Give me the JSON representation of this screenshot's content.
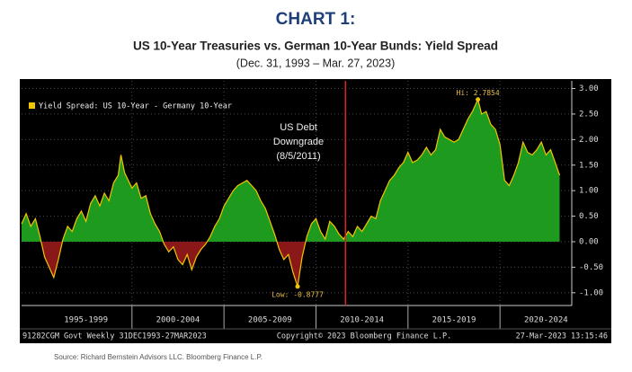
{
  "header": {
    "title": "CHART 1:",
    "subtitle": "US 10-Year Treasuries vs. German 10-Year Bunds: Yield Spread",
    "date_range": "(Dec. 31, 1993 – Mar. 27, 2023)"
  },
  "chart_data": {
    "type": "area",
    "x": [
      1994.0,
      1994.25,
      1994.5,
      1994.75,
      1995.0,
      1995.25,
      1995.5,
      1995.75,
      1996.0,
      1996.25,
      1996.5,
      1996.75,
      1997.0,
      1997.25,
      1997.5,
      1997.75,
      1998.0,
      1998.25,
      1998.5,
      1998.75,
      1999.0,
      1999.25,
      1999.4,
      1999.6,
      1999.8,
      2000.0,
      2000.25,
      2000.5,
      2000.75,
      2001.0,
      2001.25,
      2001.5,
      2001.75,
      2002.0,
      2002.25,
      2002.5,
      2002.75,
      2003.0,
      2003.25,
      2003.5,
      2003.75,
      2004.0,
      2004.25,
      2004.5,
      2004.75,
      2005.0,
      2005.25,
      2005.5,
      2005.75,
      2006.0,
      2006.25,
      2006.5,
      2006.75,
      2007.0,
      2007.25,
      2007.5,
      2007.75,
      2008.0,
      2008.25,
      2008.5,
      2008.75,
      2009.0,
      2009.25,
      2009.5,
      2009.75,
      2010.0,
      2010.25,
      2010.5,
      2010.75,
      2011.0,
      2011.25,
      2011.5,
      2011.75,
      2012.0,
      2012.25,
      2012.5,
      2012.75,
      2013.0,
      2013.25,
      2013.5,
      2013.75,
      2014.0,
      2014.25,
      2014.5,
      2014.75,
      2015.0,
      2015.25,
      2015.5,
      2015.75,
      2016.0,
      2016.25,
      2016.5,
      2016.75,
      2017.0,
      2017.25,
      2017.5,
      2017.75,
      2018.0,
      2018.25,
      2018.5,
      2018.8,
      2019.0,
      2019.25,
      2019.5,
      2019.75,
      2020.0,
      2020.25,
      2020.5,
      2020.75,
      2021.0,
      2021.25,
      2021.5,
      2021.75,
      2022.0,
      2022.25,
      2022.5,
      2022.75,
      2023.0,
      2023.24
    ],
    "series": [
      {
        "name": "Yield Spread: US 10-Year - Germany 10-Year",
        "color": "#f2c500",
        "positive_fill": "#1e9a1e",
        "negative_fill": "#8a1818",
        "values": [
          0.35,
          0.55,
          0.3,
          0.45,
          0.1,
          -0.3,
          -0.5,
          -0.7,
          -0.35,
          0.05,
          0.3,
          0.2,
          0.45,
          0.6,
          0.4,
          0.75,
          0.9,
          0.7,
          0.95,
          0.8,
          1.15,
          1.3,
          1.7,
          1.35,
          1.2,
          1.05,
          1.15,
          0.85,
          0.9,
          0.55,
          0.35,
          0.2,
          -0.05,
          -0.2,
          -0.1,
          -0.35,
          -0.45,
          -0.25,
          -0.55,
          -0.3,
          -0.15,
          -0.05,
          0.1,
          0.3,
          0.45,
          0.7,
          0.85,
          1.0,
          1.1,
          1.15,
          1.2,
          1.1,
          1.0,
          0.8,
          0.65,
          0.4,
          0.15,
          -0.15,
          -0.35,
          -0.25,
          -0.6,
          -0.8777,
          -0.3,
          0.1,
          0.35,
          0.45,
          0.2,
          0.05,
          0.4,
          0.3,
          0.15,
          0.05,
          0.2,
          0.1,
          0.3,
          0.2,
          0.35,
          0.5,
          0.45,
          0.8,
          1.0,
          1.2,
          1.3,
          1.45,
          1.55,
          1.75,
          1.55,
          1.6,
          1.7,
          1.85,
          1.7,
          1.8,
          2.2,
          2.05,
          2.0,
          1.95,
          2.0,
          2.2,
          2.4,
          2.55,
          2.7854,
          2.5,
          2.55,
          2.3,
          2.2,
          1.9,
          1.2,
          1.1,
          1.3,
          1.55,
          1.95,
          1.75,
          1.7,
          1.8,
          1.95,
          1.7,
          1.8,
          1.55,
          1.3
        ]
      }
    ],
    "xlim": [
      1994.0,
      2023.9
    ],
    "ylim": [
      -1.25,
      3.15
    ],
    "yticks": [
      {
        "value": 3,
        "label": "3.00"
      },
      {
        "value": 2.5,
        "label": "2.50"
      },
      {
        "value": 2,
        "label": "2.00"
      },
      {
        "value": 1.5,
        "label": "1.50"
      },
      {
        "value": 1,
        "label": "1.00"
      },
      {
        "value": 0.5,
        "label": "0.50"
      },
      {
        "value": 0,
        "label": "0.00"
      },
      {
        "value": -0.5,
        "label": "-0.50"
      },
      {
        "value": -1,
        "label": "-1.00"
      }
    ],
    "xticks": [
      {
        "value": 1997.5,
        "label": "1995-1999"
      },
      {
        "value": 2002.5,
        "label": "2000-2004"
      },
      {
        "value": 2007.5,
        "label": "2005-2009"
      },
      {
        "value": 2012.5,
        "label": "2010-2014"
      },
      {
        "value": 2017.5,
        "label": "2015-2019"
      },
      {
        "value": 2022.5,
        "label": "2020-2024"
      }
    ],
    "grid": true,
    "legend": "top-left",
    "annotations": [
      {
        "text": "Hi: 2.7854",
        "x": 2018.8,
        "y": 2.7854
      },
      {
        "text": "Low: -0.8777",
        "x": 2009.0,
        "y": -0.8777
      }
    ],
    "event": {
      "lines": [
        "US Debt",
        "Downgrade",
        "(8/5/2011)"
      ],
      "x": 2011.6,
      "color": "#e02020"
    },
    "footer": {
      "left": "91282CGM Govt  Weekly 31DEC1993-27MAR2023",
      "center": "Copyright© 2023 Bloomberg Finance L.P.",
      "right": "27-Mar-2023 13:15:46"
    }
  },
  "source": "Source:  Richard Bernstein Advisors LLC.  Bloomberg Finance L.P."
}
